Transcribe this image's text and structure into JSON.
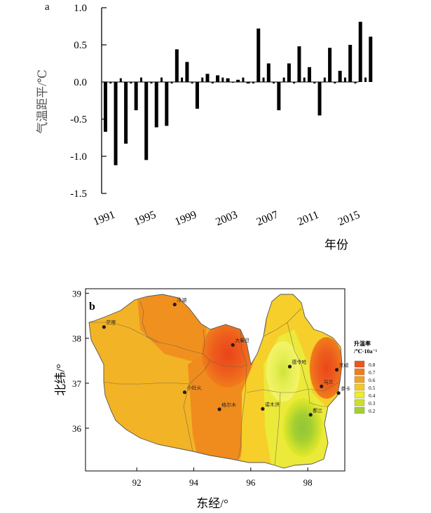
{
  "chart_data": [
    {
      "panel": "a",
      "type": "bar",
      "ylabel": "气温距平/℃",
      "xlabel": "年份",
      "ylim": [
        -1.5,
        1.0
      ],
      "yticks": [
        "1.0",
        "0.5",
        "0.0",
        "-0.5",
        "-1.0",
        "-1.5"
      ],
      "ytick_values": [
        1.0,
        0.5,
        0.0,
        -0.5,
        -1.0,
        -1.5
      ],
      "xtick_labels": [
        "1991",
        "1995",
        "1999",
        "2003",
        "2007",
        "2011",
        "2015"
      ],
      "xtick_years": [
        1991,
        1995,
        1999,
        2003,
        2007,
        2011,
        2015
      ],
      "bar_color": "#000000",
      "bars": [
        {
          "year": 1991.0,
          "value": -0.67
        },
        {
          "year": 1991.5,
          "value": -0.02
        },
        {
          "year": 1992.0,
          "value": -1.12
        },
        {
          "year": 1992.5,
          "value": 0.05
        },
        {
          "year": 1993.0,
          "value": -0.83
        },
        {
          "year": 1993.5,
          "value": -0.02
        },
        {
          "year": 1994.0,
          "value": -0.38
        },
        {
          "year": 1994.5,
          "value": 0.06
        },
        {
          "year": 1995.0,
          "value": -1.05
        },
        {
          "year": 1995.5,
          "value": -0.02
        },
        {
          "year": 1996.0,
          "value": -0.61
        },
        {
          "year": 1996.5,
          "value": 0.06
        },
        {
          "year": 1997.0,
          "value": -0.59
        },
        {
          "year": 1997.5,
          "value": -0.02
        },
        {
          "year": 1998.0,
          "value": 0.44
        },
        {
          "year": 1998.5,
          "value": 0.06
        },
        {
          "year": 1999.0,
          "value": 0.27
        },
        {
          "year": 1999.5,
          "value": -0.02
        },
        {
          "year": 2000.0,
          "value": -0.36
        },
        {
          "year": 2000.5,
          "value": 0.06
        },
        {
          "year": 2001.0,
          "value": 0.11
        },
        {
          "year": 2001.5,
          "value": -0.02
        },
        {
          "year": 2002.0,
          "value": 0.09
        },
        {
          "year": 2002.5,
          "value": 0.06
        },
        {
          "year": 2003.0,
          "value": 0.05
        },
        {
          "year": 2003.5,
          "value": -0.01
        },
        {
          "year": 2004.0,
          "value": 0.03
        },
        {
          "year": 2004.5,
          "value": 0.06
        },
        {
          "year": 2005.0,
          "value": -0.02
        },
        {
          "year": 2005.5,
          "value": -0.02
        },
        {
          "year": 2006.0,
          "value": 0.72
        },
        {
          "year": 2006.5,
          "value": 0.06
        },
        {
          "year": 2007.0,
          "value": 0.25
        },
        {
          "year": 2007.5,
          "value": -0.02
        },
        {
          "year": 2008.0,
          "value": -0.38
        },
        {
          "year": 2008.5,
          "value": 0.06
        },
        {
          "year": 2009.0,
          "value": 0.25
        },
        {
          "year": 2009.5,
          "value": -0.02
        },
        {
          "year": 2010.0,
          "value": 0.48
        },
        {
          "year": 2010.5,
          "value": 0.06
        },
        {
          "year": 2011.0,
          "value": 0.2
        },
        {
          "year": 2011.5,
          "value": -0.02
        },
        {
          "year": 2012.0,
          "value": -0.45
        },
        {
          "year": 2012.5,
          "value": 0.06
        },
        {
          "year": 2013.0,
          "value": 0.46
        },
        {
          "year": 2013.5,
          "value": -0.02
        },
        {
          "year": 2014.0,
          "value": 0.15
        },
        {
          "year": 2014.5,
          "value": 0.06
        },
        {
          "year": 2015.0,
          "value": 0.5
        },
        {
          "year": 2015.5,
          "value": -0.02
        },
        {
          "year": 2016.0,
          "value": 0.81
        },
        {
          "year": 2016.5,
          "value": 0.06
        },
        {
          "year": 2017.0,
          "value": 0.61
        }
      ]
    },
    {
      "panel": "b",
      "type": "heatmap",
      "xlabel": "东经/°",
      "ylabel": "北纬/°",
      "xlim": [
        90.2,
        99.3
      ],
      "ylim": [
        35.05,
        39.1
      ],
      "xticks": [
        "92",
        "94",
        "96",
        "98"
      ],
      "xtick_values": [
        92,
        94,
        96,
        98
      ],
      "yticks": [
        "39",
        "38",
        "37",
        "36"
      ],
      "ytick_values": [
        39,
        38,
        37,
        36
      ],
      "legend": {
        "title_line1": "升温率",
        "title_line2": "/℃·10a⁻¹",
        "placement": "right",
        "entries": [
          {
            "label": "0.8",
            "color": "#ee5518"
          },
          {
            "label": "0.7",
            "color": "#f07d1c"
          },
          {
            "label": "0.6",
            "color": "#f1a321"
          },
          {
            "label": "0.5",
            "color": "#f5c826"
          },
          {
            "label": "0.4",
            "color": "#ecec27"
          },
          {
            "label": "0.3",
            "color": "#cce02c"
          },
          {
            "label": "0.2",
            "color": "#a4cf32"
          }
        ]
      },
      "stations": [
        {
          "name": "茫崖",
          "lon": 90.85,
          "lat": 38.25
        },
        {
          "name": "冷湖",
          "lon": 93.33,
          "lat": 38.75
        },
        {
          "name": "大柴旦",
          "lon": 95.37,
          "lat": 37.85
        },
        {
          "name": "小灶火",
          "lon": 93.68,
          "lat": 36.8
        },
        {
          "name": "格尔木",
          "lon": 94.9,
          "lat": 36.42
        },
        {
          "name": "诺木洪",
          "lon": 96.42,
          "lat": 36.43
        },
        {
          "name": "德令哈",
          "lon": 97.37,
          "lat": 37.37
        },
        {
          "name": "乌兰",
          "lon": 98.48,
          "lat": 36.93
        },
        {
          "name": "都兰",
          "lon": 98.1,
          "lat": 36.3
        },
        {
          "name": "天峻",
          "lon": 99.02,
          "lat": 37.3
        },
        {
          "name": "茶卡",
          "lon": 99.08,
          "lat": 36.78
        }
      ]
    }
  ]
}
